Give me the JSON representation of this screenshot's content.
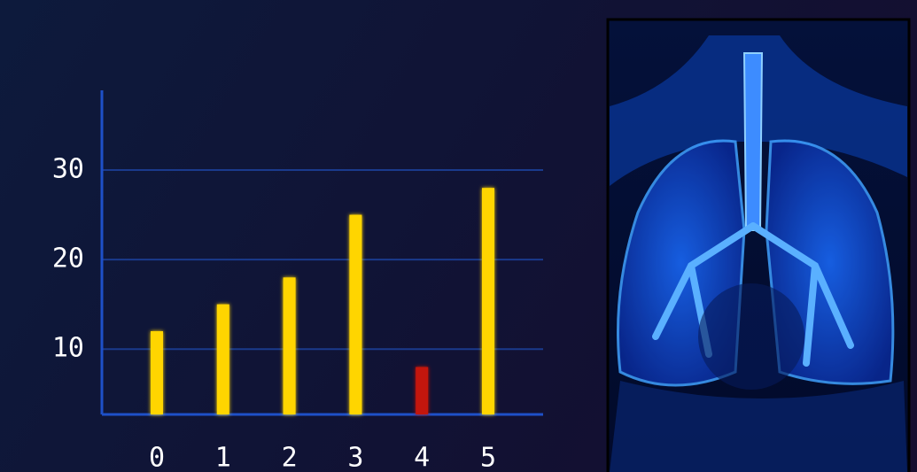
{
  "chart_data": {
    "type": "bar",
    "categories": [
      "0",
      "1",
      "2",
      "3",
      "4",
      "5"
    ],
    "values": [
      12,
      15,
      18,
      25,
      8,
      28
    ],
    "colors": [
      "#ffd500",
      "#ffd500",
      "#ffd500",
      "#ffd500",
      "#c3120f",
      "#ffd500"
    ],
    "ylim": [
      2.7,
      38.9
    ],
    "yticks": [
      10,
      20,
      30
    ],
    "grid": true
  }
}
